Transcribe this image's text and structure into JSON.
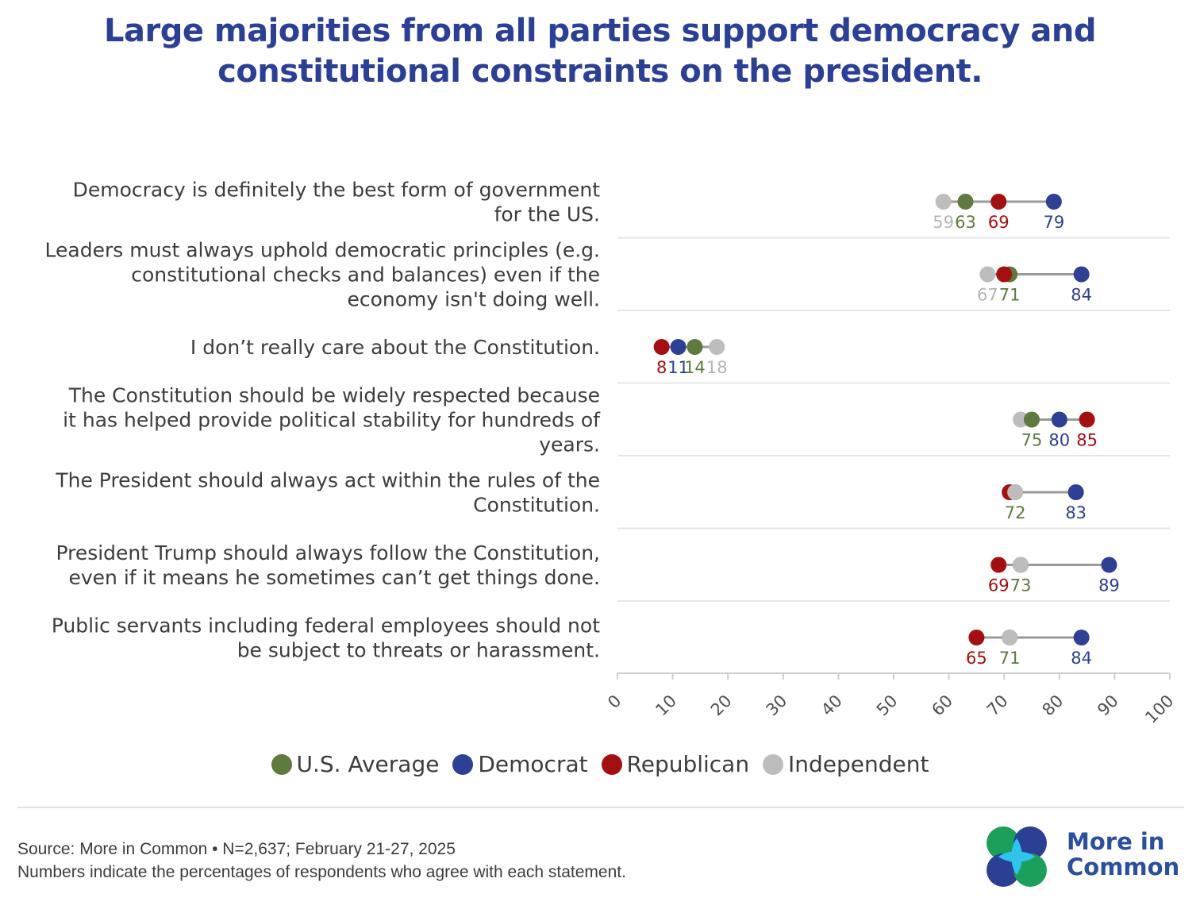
{
  "title": {
    "line1": "Large majorities from all parties support democracy and",
    "line2": "constitutional constraints on the president."
  },
  "colors": {
    "us_average": "#5e7a3c",
    "democrat": "#2e3f96",
    "republican": "#a50f0f",
    "independent": "#bdbdbd",
    "title": "#2a3f98"
  },
  "chart_data": {
    "type": "dot",
    "xlim": [
      0,
      100
    ],
    "xticks": [
      "0",
      "10",
      "20",
      "30",
      "40",
      "50",
      "60",
      "70",
      "80",
      "90",
      "100"
    ],
    "series": [
      {
        "name": "U.S. Average",
        "key": "us_average"
      },
      {
        "name": "Democrat",
        "key": "democrat"
      },
      {
        "name": "Republican",
        "key": "republican"
      },
      {
        "name": "Independent",
        "key": "independent"
      }
    ],
    "rows": [
      {
        "label_lines": [
          "Democracy is definitely the best form of government",
          "for the US."
        ],
        "values": {
          "us_average": 63,
          "democrat": 79,
          "republican": 69,
          "independent": 59
        },
        "shown_labels": [
          "independent",
          "us_average",
          "republican",
          "democrat"
        ]
      },
      {
        "label_lines": [
          "Leaders must always uphold democratic principles (e.g.",
          "constitutional checks and balances) even if the",
          "economy isn't doing well."
        ],
        "values": {
          "us_average": 71,
          "democrat": 84,
          "republican": 70,
          "independent": 67
        },
        "shown_labels": [
          "independent",
          "us_average",
          "democrat"
        ]
      },
      {
        "label_lines": [
          "I don’t really care about the Constitution."
        ],
        "values": {
          "us_average": 14,
          "democrat": 11,
          "republican": 8,
          "independent": 18
        },
        "shown_labels": [
          "republican",
          "democrat",
          "us_average",
          "independent"
        ]
      },
      {
        "label_lines": [
          "The Constitution should be widely respected because",
          "it has helped provide political stability for hundreds of",
          "years."
        ],
        "values": {
          "us_average": 75,
          "democrat": 80,
          "republican": 85,
          "independent": 73
        },
        "shown_labels": [
          "us_average",
          "democrat",
          "republican"
        ]
      },
      {
        "label_lines": [
          "The President should always act within the rules of the",
          "Constitution."
        ],
        "values": {
          "us_average": 72,
          "democrat": 83,
          "republican": 71,
          "independent": 72
        },
        "shown_labels": [
          "us_average",
          "democrat"
        ]
      },
      {
        "label_lines": [
          "President Trump should always follow the Constitution,",
          "even if it means he sometimes can’t get things done."
        ],
        "values": {
          "us_average": 73,
          "democrat": 89,
          "republican": 69,
          "independent": 73
        },
        "shown_labels": [
          "republican",
          "us_average",
          "democrat"
        ]
      },
      {
        "label_lines": [
          "Public servants including federal employees should not",
          "be subject to threats or harassment."
        ],
        "values": {
          "us_average": 71,
          "democrat": 84,
          "republican": 65,
          "independent": 71
        },
        "shown_labels": [
          "republican",
          "us_average",
          "democrat"
        ]
      }
    ]
  },
  "legend": {
    "us_average": "U.S. Average",
    "democrat": "Democrat",
    "republican": "Republican",
    "independent": "Independent"
  },
  "source": {
    "line1": "Source: More in Common • N=2,637; February 21-27, 2025",
    "line2": "Numbers indicate the percentages of respondents who agree with each statement."
  },
  "logo": {
    "line1": "More in",
    "line2": "Common"
  }
}
